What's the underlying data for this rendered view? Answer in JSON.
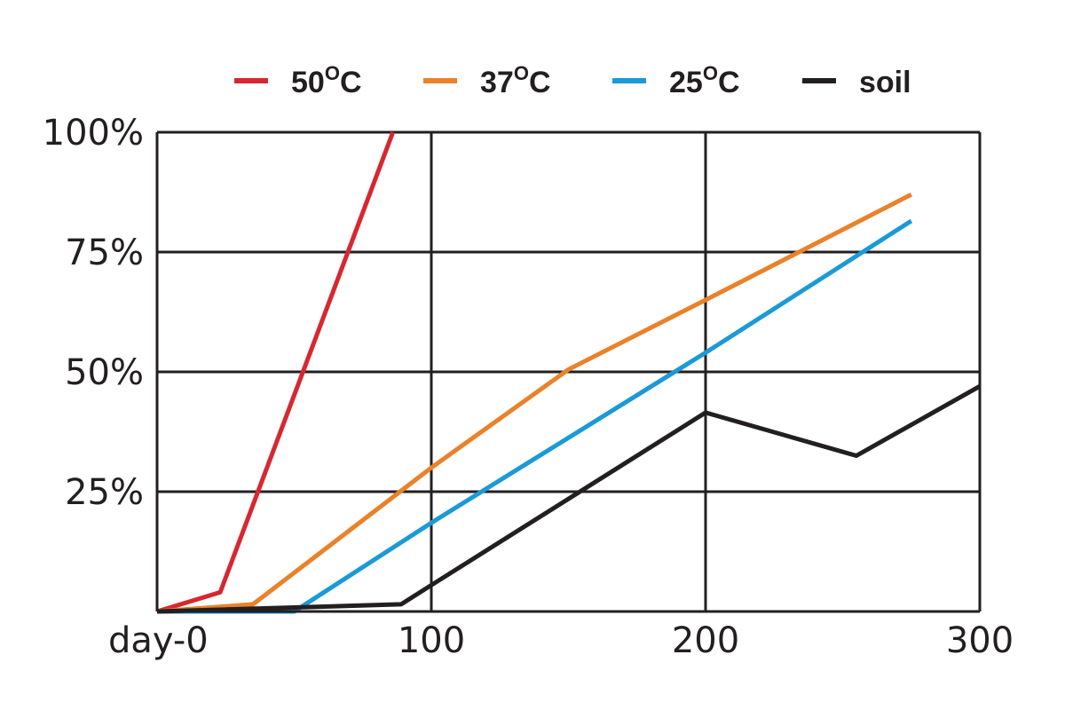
{
  "chart_data": {
    "type": "line",
    "x_ticks": [
      {
        "value": 0,
        "label": "day-0"
      },
      {
        "value": 100,
        "label": "100"
      },
      {
        "value": 200,
        "label": "200"
      },
      {
        "value": 300,
        "label": "300"
      }
    ],
    "y_ticks": [
      {
        "value": 25,
        "label": "25%"
      },
      {
        "value": 50,
        "label": "50%"
      },
      {
        "value": 75,
        "label": "75%"
      },
      {
        "value": 100,
        "label": "100%"
      }
    ],
    "xlim": [
      0,
      300
    ],
    "ylim": [
      0,
      100
    ],
    "grid": true,
    "legend_position": "top",
    "series": [
      {
        "name": "50°C",
        "label_parts": {
          "main": "50",
          "sup": "O",
          "tail": "C"
        },
        "color": "#d7282f",
        "points": [
          [
            0,
            0
          ],
          [
            23,
            4
          ],
          [
            86,
            100
          ]
        ]
      },
      {
        "name": "37°C",
        "label_parts": {
          "main": "37",
          "sup": "O",
          "tail": "C"
        },
        "color": "#e9822a",
        "points": [
          [
            0,
            0
          ],
          [
            35,
            1.5
          ],
          [
            100,
            30
          ],
          [
            150,
            50.5
          ],
          [
            200,
            65
          ],
          [
            275,
            87
          ]
        ]
      },
      {
        "name": "25°C",
        "label_parts": {
          "main": "25",
          "sup": "O",
          "tail": "C"
        },
        "color": "#1b9ad6",
        "points": [
          [
            0,
            0
          ],
          [
            50,
            0
          ],
          [
            100,
            18.5
          ],
          [
            200,
            54
          ],
          [
            275,
            81.5
          ]
        ]
      },
      {
        "name": "soil",
        "label_parts": {
          "main": "soil",
          "sup": "",
          "tail": ""
        },
        "color": "#231f20",
        "points": [
          [
            0,
            0
          ],
          [
            89,
            1.5
          ],
          [
            100,
            5.5
          ],
          [
            150,
            23.5
          ],
          [
            200,
            41.5
          ],
          [
            255,
            32.5
          ],
          [
            300,
            47
          ]
        ]
      }
    ]
  }
}
